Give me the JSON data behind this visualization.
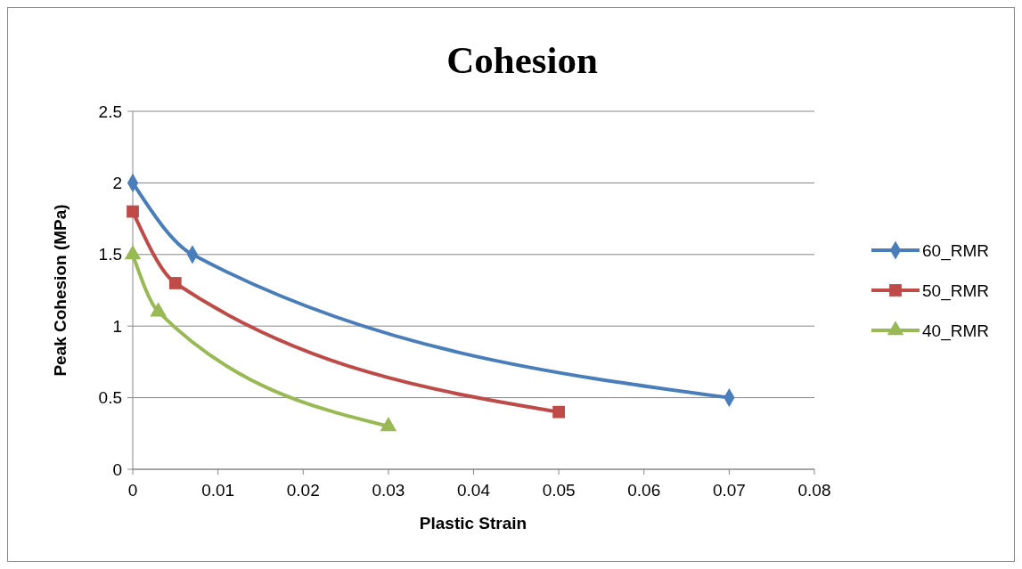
{
  "chart_data": {
    "type": "line",
    "title": "Cohesion",
    "xlabel": "Plastic Strain",
    "ylabel": "Peak Cohesion (MPa)",
    "xlim": [
      0,
      0.08
    ],
    "xticks": [
      0,
      0.01,
      0.02,
      0.03,
      0.04,
      0.05,
      0.06,
      0.07,
      0.08
    ],
    "ylim": [
      0,
      2.5
    ],
    "yticks": [
      0,
      0.5,
      1,
      1.5,
      2,
      2.5
    ],
    "grid": "y",
    "legend": "right",
    "line_style": "solid",
    "series": [
      {
        "name": "60_RMR",
        "color": "#4a7ebb",
        "marker": "diamond",
        "x": [
          0,
          0.007,
          0.07
        ],
        "values": [
          2,
          1.5,
          0.5
        ]
      },
      {
        "name": "50_RMR",
        "color": "#be4b48",
        "marker": "square",
        "x": [
          0,
          0.005,
          0.05
        ],
        "values": [
          1.8,
          1.3,
          0.4
        ]
      },
      {
        "name": "40_RMR",
        "color": "#98b954",
        "marker": "triangle",
        "x": [
          0,
          0.003,
          0.03
        ],
        "values": [
          1.5,
          1.1,
          0.3
        ]
      }
    ]
  }
}
